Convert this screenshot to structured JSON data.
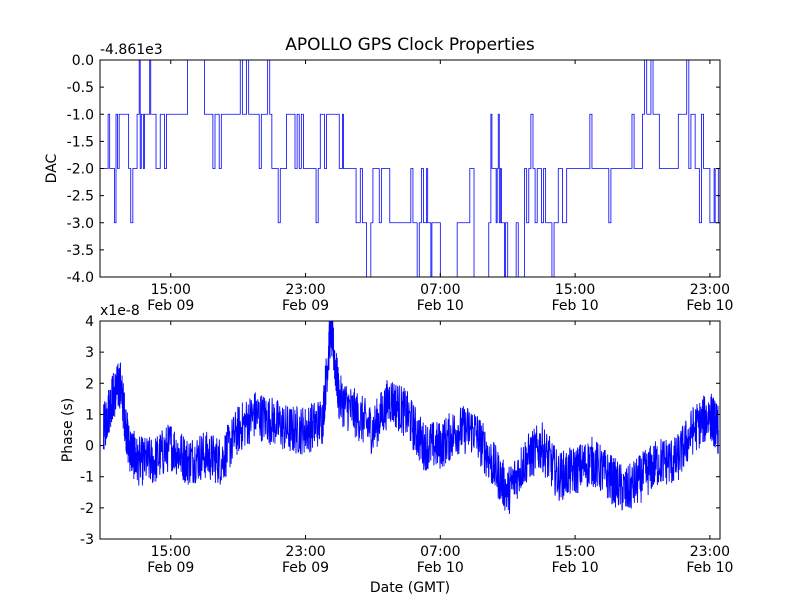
{
  "chart_data": [
    {
      "type": "line",
      "title": "APOLLO GPS Clock Properties",
      "xlabel": "",
      "ylabel": "DAC",
      "y_offset_label": "-4.861e3",
      "ylim": [
        -4.0,
        0.0
      ],
      "xlim_hours": [
        11.2,
        23.8
      ],
      "xlim_hours_note": "",
      "x_ticks": [
        {
          "time": "15:00",
          "date": "Feb 09"
        },
        {
          "time": "23:00",
          "date": "Feb 09"
        },
        {
          "time": "07:00",
          "date": "Feb 10"
        },
        {
          "time": "15:00",
          "date": "Feb 10"
        },
        {
          "time": "23:00",
          "date": "Feb 10"
        }
      ],
      "y_ticks": [
        "0.0",
        "-0.5",
        "-1.0",
        "-1.5",
        "-2.0",
        "-2.5",
        "-3.0",
        "-3.5",
        "-4.0"
      ],
      "y_tick_values": [
        0.0,
        -0.5,
        -1.0,
        -1.5,
        -2.0,
        -2.5,
        -3.0,
        -3.5,
        -4.0
      ],
      "series": [
        {
          "name": "",
          "color": "#0000ff",
          "x": [
            "Feb 09 11:00",
            "Feb 09 11:45",
            "Feb 09 12:30",
            "Feb 09 13:00",
            "Feb 09 13:30",
            "Feb 09 14:00",
            "Feb 09 15:00",
            "Feb 09 16:00",
            "Feb 09 17:00",
            "Feb 09 18:00",
            "Feb 09 19:00",
            "Feb 09 20:00",
            "Feb 09 21:00",
            "Feb 09 22:00",
            "Feb 09 23:00",
            "Feb 10 00:00",
            "Feb 10 01:00",
            "Feb 10 01:30",
            "Feb 10 02:00",
            "Feb 10 03:00",
            "Feb 10 04:00",
            "Feb 10 05:00",
            "Feb 10 06:00",
            "Feb 10 06:30",
            "Feb 10 07:00",
            "Feb 10 08:00",
            "Feb 10 09:00",
            "Feb 10 10:00",
            "Feb 10 10:30",
            "Feb 10 11:00",
            "Feb 10 12:00",
            "Feb 10 13:00",
            "Feb 10 14:00",
            "Feb 10 15:00",
            "Feb 10 16:00",
            "Feb 10 17:00",
            "Feb 10 18:00",
            "Feb 10 19:00",
            "Feb 10 20:00",
            "Feb 10 21:00",
            "Feb 10 22:00",
            "Feb 10 23:00",
            "Feb 10 23:30"
          ],
          "values": [
            -2.0,
            -1.0,
            -2.0,
            -1.0,
            -1.0,
            -1.0,
            -1.0,
            -0.0,
            -1.0,
            -1.0,
            -1.0,
            -1.0,
            -2.0,
            -1.0,
            -2.0,
            -1.0,
            -2.0,
            -2.0,
            -3.0,
            -2.0,
            -3.0,
            -3.0,
            -3.0,
            -3.0,
            -4.0,
            -3.0,
            -4.0,
            -2.0,
            -3.0,
            -4.0,
            -2.0,
            -3.0,
            -2.0,
            -2.0,
            -2.0,
            -2.0,
            -2.0,
            -1.0,
            -2.0,
            -1.0,
            -2.0,
            -3.0,
            -2.0
          ]
        }
      ]
    },
    {
      "type": "line",
      "title": "",
      "xlabel": "Date (GMT)",
      "ylabel": "Phase (s)",
      "y_offset_label": "x1e-8",
      "ylim": [
        -3,
        4
      ],
      "x_ticks": [
        {
          "time": "15:00",
          "date": "Feb 09"
        },
        {
          "time": "23:00",
          "date": "Feb 09"
        },
        {
          "time": "07:00",
          "date": "Feb 10"
        },
        {
          "time": "15:00",
          "date": "Feb 10"
        },
        {
          "time": "23:00",
          "date": "Feb 10"
        }
      ],
      "y_ticks": [
        "4",
        "3",
        "2",
        "1",
        "0",
        "-1",
        "-2",
        "-3"
      ],
      "y_tick_values": [
        4,
        3,
        2,
        1,
        0,
        -1,
        -2,
        -3
      ],
      "series": [
        {
          "name": "",
          "color": "#0000ff",
          "x": [
            "Feb 09 11:00",
            "Feb 09 11:30",
            "Feb 09 12:00",
            "Feb 09 12:30",
            "Feb 09 13:00",
            "Feb 09 14:00",
            "Feb 09 15:00",
            "Feb 09 16:00",
            "Feb 09 17:00",
            "Feb 09 18:00",
            "Feb 09 19:00",
            "Feb 09 20:00",
            "Feb 09 21:00",
            "Feb 09 22:00",
            "Feb 09 23:00",
            "Feb 10 00:00",
            "Feb 10 00:30",
            "Feb 10 01:00",
            "Feb 10 02:00",
            "Feb 10 03:00",
            "Feb 10 04:00",
            "Feb 10 05:00",
            "Feb 10 06:00",
            "Feb 10 07:00",
            "Feb 10 08:00",
            "Feb 10 09:00",
            "Feb 10 10:00",
            "Feb 10 11:00",
            "Feb 10 12:00",
            "Feb 10 13:00",
            "Feb 10 14:00",
            "Feb 10 15:00",
            "Feb 10 16:00",
            "Feb 10 17:00",
            "Feb 10 18:00",
            "Feb 10 19:00",
            "Feb 10 20:00",
            "Feb 10 21:00",
            "Feb 10 22:00",
            "Feb 10 23:00",
            "Feb 10 23:30"
          ],
          "values": [
            0.5,
            1.5,
            2.0,
            0.0,
            -0.5,
            -0.5,
            0.0,
            -0.5,
            -0.3,
            -0.5,
            0.5,
            1.0,
            0.8,
            0.5,
            0.5,
            0.8,
            3.8,
            1.5,
            1.0,
            0.5,
            1.5,
            1.0,
            0.0,
            0.0,
            0.5,
            0.5,
            -0.5,
            -1.5,
            -0.5,
            0.0,
            -1.0,
            -0.8,
            -0.5,
            -1.0,
            -1.5,
            -1.0,
            -0.5,
            -0.5,
            0.5,
            1.0,
            0.5
          ]
        }
      ]
    }
  ]
}
